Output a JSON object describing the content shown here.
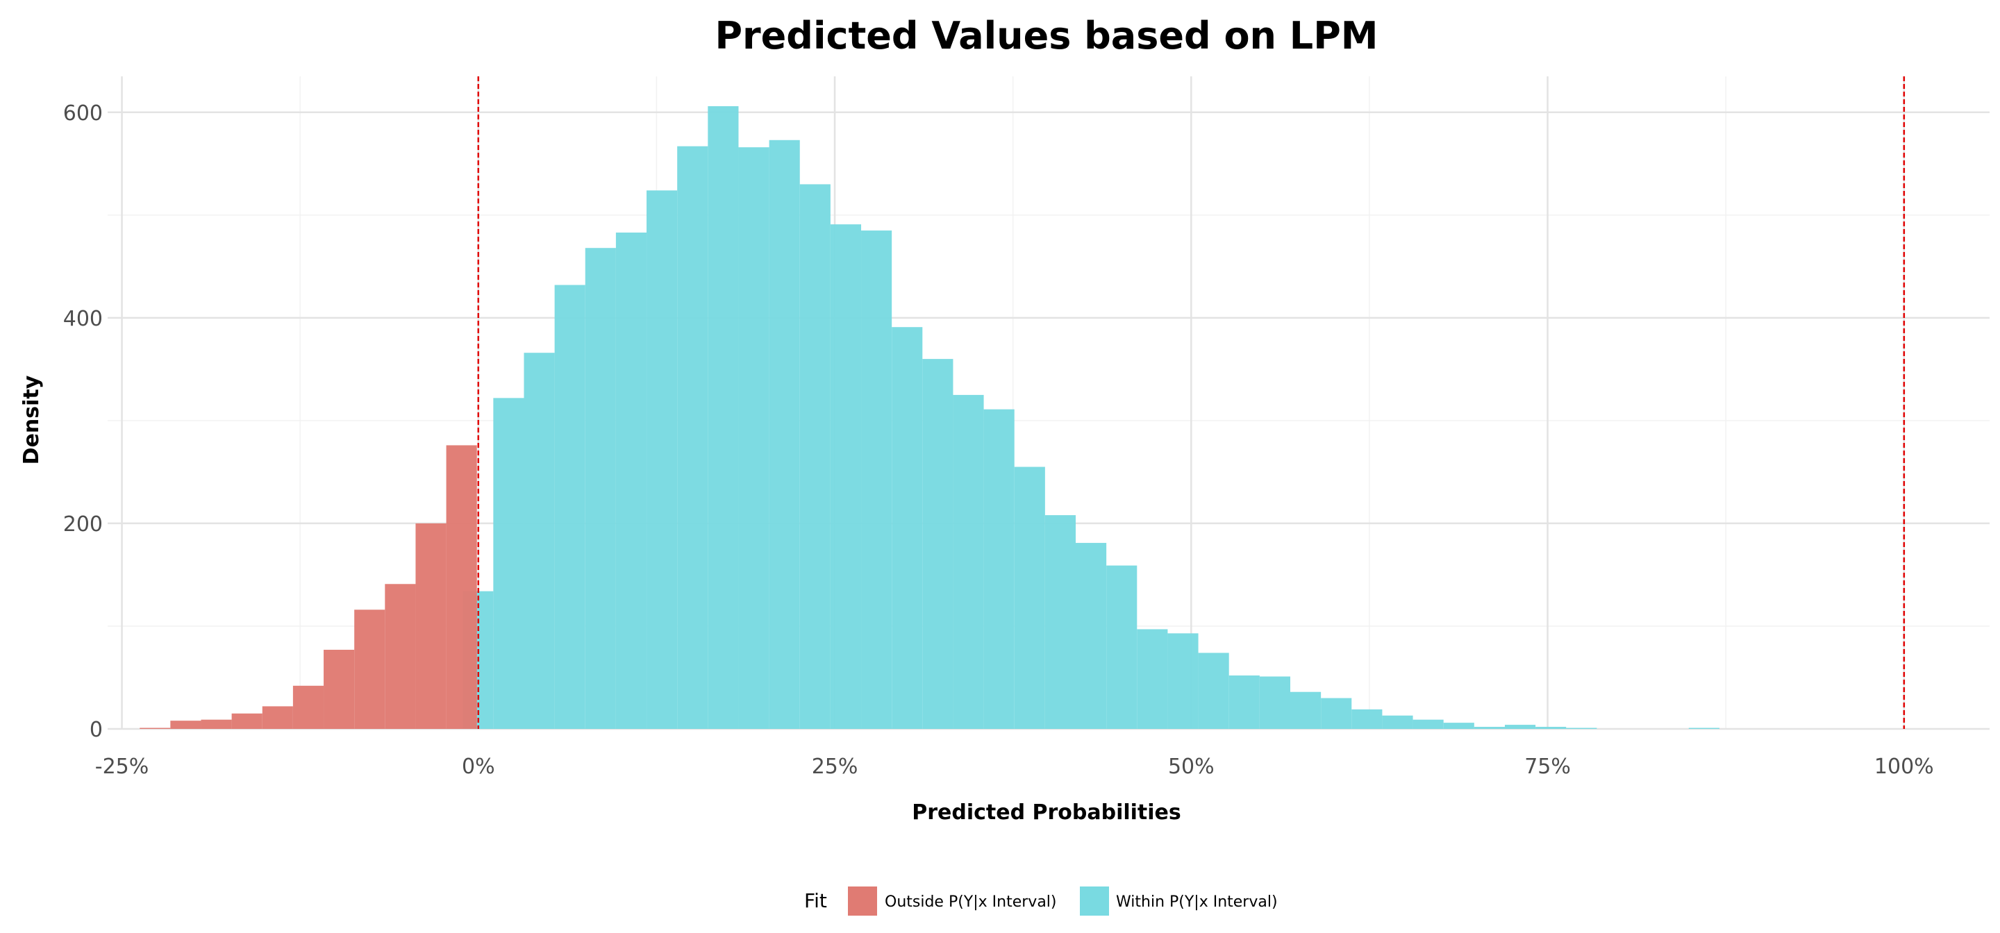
{
  "chart_data": {
    "type": "histogram",
    "title": "Predicted Values based on LPM",
    "xlabel": "Predicted Probabilities",
    "ylabel": "Density",
    "xlim": [
      -0.26,
      1.06
    ],
    "ylim": [
      0,
      635
    ],
    "x_ticks": [
      -0.25,
      0,
      0.25,
      0.5,
      0.75,
      1.0
    ],
    "x_tick_labels": [
      "-25%",
      "0%",
      "25%",
      "50%",
      "75%",
      "100%"
    ],
    "y_ticks": [
      0,
      200,
      400,
      600
    ],
    "y_tick_labels": [
      "0",
      "200",
      "400",
      "600"
    ],
    "grid": true,
    "bin_width": 0.0215,
    "reference_lines": [
      0,
      1.0
    ],
    "legend": {
      "title": "Fit",
      "position": "bottom",
      "entries": [
        {
          "label": "Outside P(Y|x Interval)",
          "color": "#e07b73"
        },
        {
          "label": "Within P(Y|x Interval)",
          "color": "#79dae1"
        }
      ]
    },
    "series": [
      {
        "name": "Outside P(Y|x Interval)",
        "color": "#e07b73",
        "bins": [
          {
            "x0": -0.2375,
            "x1": -0.216,
            "y": 1
          },
          {
            "x0": -0.216,
            "x1": -0.1945,
            "y": 8
          },
          {
            "x0": -0.1945,
            "x1": -0.173,
            "y": 9
          },
          {
            "x0": -0.173,
            "x1": -0.1515,
            "y": 15
          },
          {
            "x0": -0.1515,
            "x1": -0.13,
            "y": 22
          },
          {
            "x0": -0.13,
            "x1": -0.1085,
            "y": 42
          },
          {
            "x0": -0.1085,
            "x1": -0.087,
            "y": 77
          },
          {
            "x0": -0.087,
            "x1": -0.0655,
            "y": 116
          },
          {
            "x0": -0.0655,
            "x1": -0.044,
            "y": 141
          },
          {
            "x0": -0.044,
            "x1": -0.0225,
            "y": 200
          },
          {
            "x0": -0.0225,
            "x1": -0.001,
            "y": 276
          }
        ]
      },
      {
        "name": "Within P(Y|x Interval)",
        "color": "#79dae1",
        "bins": [
          {
            "x0": -0.011,
            "x1": 0.0105,
            "y": 134
          },
          {
            "x0": 0.0105,
            "x1": 0.032,
            "y": 322
          },
          {
            "x0": 0.032,
            "x1": 0.0535,
            "y": 366
          },
          {
            "x0": 0.0535,
            "x1": 0.075,
            "y": 432
          },
          {
            "x0": 0.075,
            "x1": 0.0965,
            "y": 468
          },
          {
            "x0": 0.0965,
            "x1": 0.118,
            "y": 483
          },
          {
            "x0": 0.118,
            "x1": 0.1395,
            "y": 524
          },
          {
            "x0": 0.1395,
            "x1": 0.161,
            "y": 567
          },
          {
            "x0": 0.161,
            "x1": 0.1825,
            "y": 606
          },
          {
            "x0": 0.1825,
            "x1": 0.204,
            "y": 566
          },
          {
            "x0": 0.204,
            "x1": 0.2255,
            "y": 573
          },
          {
            "x0": 0.2255,
            "x1": 0.247,
            "y": 530
          },
          {
            "x0": 0.247,
            "x1": 0.2685,
            "y": 491
          },
          {
            "x0": 0.2685,
            "x1": 0.29,
            "y": 485
          },
          {
            "x0": 0.29,
            "x1": 0.3115,
            "y": 391
          },
          {
            "x0": 0.3115,
            "x1": 0.333,
            "y": 360
          },
          {
            "x0": 0.333,
            "x1": 0.3545,
            "y": 325
          },
          {
            "x0": 0.3545,
            "x1": 0.376,
            "y": 311
          },
          {
            "x0": 0.376,
            "x1": 0.3975,
            "y": 255
          },
          {
            "x0": 0.3975,
            "x1": 0.419,
            "y": 208
          },
          {
            "x0": 0.419,
            "x1": 0.4405,
            "y": 181
          },
          {
            "x0": 0.4405,
            "x1": 0.462,
            "y": 159
          },
          {
            "x0": 0.462,
            "x1": 0.4835,
            "y": 97
          },
          {
            "x0": 0.4835,
            "x1": 0.505,
            "y": 93
          },
          {
            "x0": 0.505,
            "x1": 0.5265,
            "y": 74
          },
          {
            "x0": 0.5265,
            "x1": 0.548,
            "y": 52
          },
          {
            "x0": 0.548,
            "x1": 0.5695,
            "y": 51
          },
          {
            "x0": 0.5695,
            "x1": 0.591,
            "y": 36
          },
          {
            "x0": 0.591,
            "x1": 0.6125,
            "y": 30
          },
          {
            "x0": 0.6125,
            "x1": 0.634,
            "y": 19
          },
          {
            "x0": 0.634,
            "x1": 0.6555,
            "y": 13
          },
          {
            "x0": 0.6555,
            "x1": 0.677,
            "y": 9
          },
          {
            "x0": 0.677,
            "x1": 0.6985,
            "y": 6
          },
          {
            "x0": 0.6985,
            "x1": 0.72,
            "y": 2
          },
          {
            "x0": 0.72,
            "x1": 0.7415,
            "y": 4
          },
          {
            "x0": 0.7415,
            "x1": 0.763,
            "y": 2
          },
          {
            "x0": 0.763,
            "x1": 0.7845,
            "y": 1
          },
          {
            "x0": 0.849,
            "x1": 0.8705,
            "y": 1
          }
        ]
      }
    ]
  }
}
